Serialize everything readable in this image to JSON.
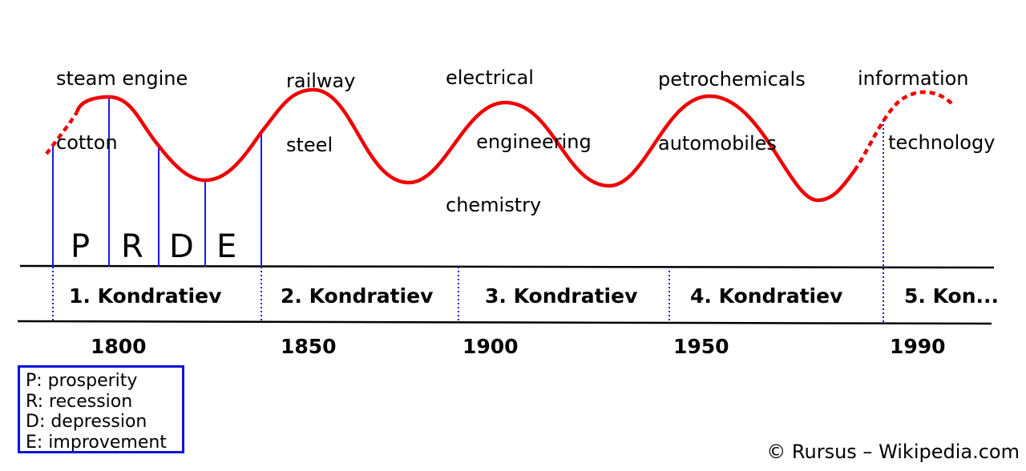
{
  "innovations": [
    {
      "lines": [
        "steam engine",
        "cotton"
      ]
    },
    {
      "lines": [
        "railway",
        "steel"
      ]
    },
    {
      "lines": [
        "electrical",
        "     engineering",
        "chemistry"
      ]
    },
    {
      "lines": [
        "petrochemicals",
        "automobiles"
      ]
    },
    {
      "lines": [
        "information",
        "     technology"
      ]
    }
  ],
  "phases": [
    "P",
    "R",
    "D",
    "E"
  ],
  "waves": [
    "1. Kondratiev",
    "2. Kondratiev",
    "3. Kondratiev",
    "4. Kondratiev",
    "5. Kon..."
  ],
  "years": [
    "1800",
    "1850",
    "1900",
    "1950",
    "1990"
  ],
  "legend": [
    "P: prosperity",
    "R: recession",
    "D: depression",
    "E: improvement"
  ],
  "credit": "© Rursus – Wikipedia.com",
  "colors": {
    "wave": "#ee0000",
    "phase_line": "#1a1aee",
    "divider": "#1a1acc",
    "axis": "#000000",
    "legend_border": "#0a14d8"
  }
}
